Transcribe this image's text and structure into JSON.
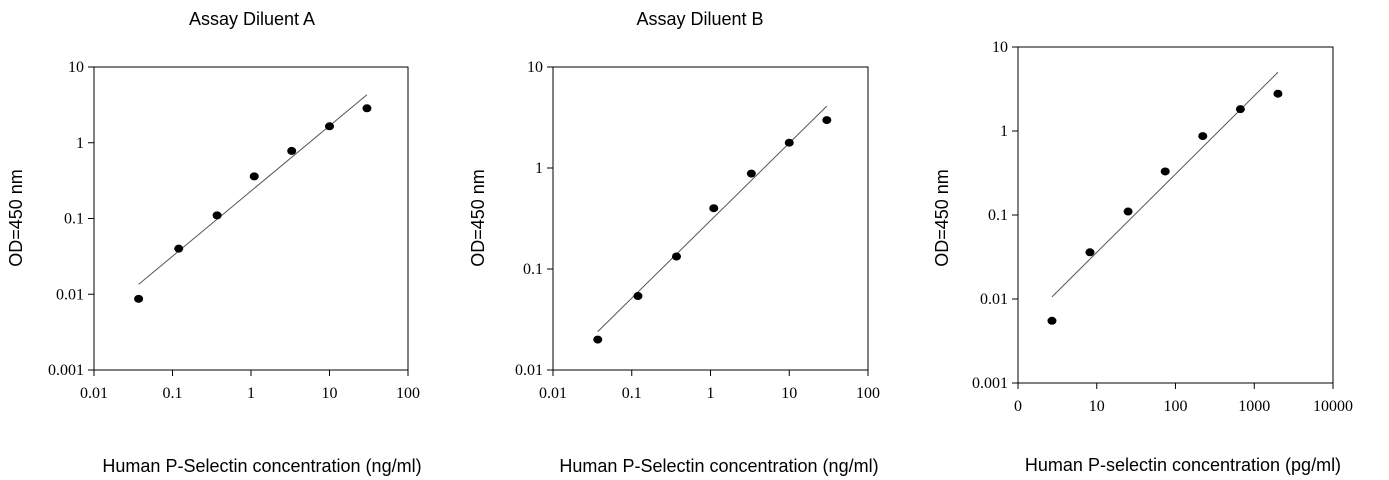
{
  "chart_data": [
    {
      "type": "scatter",
      "title": "Assay Diluent A",
      "xlabel": "Human P-Selectin concentration (ng/ml)",
      "ylabel": "OD=450 nm",
      "x_scale": "log",
      "y_scale": "log",
      "xlim": [
        0.01,
        100
      ],
      "ylim": [
        0.001,
        10
      ],
      "x_ticks": [
        "0.01",
        "0.1",
        "1",
        "10",
        "100"
      ],
      "y_ticks": [
        "0.001",
        "0.01",
        "0.1",
        "1",
        "10"
      ],
      "points": [
        {
          "x": 0.037,
          "y": 0.0087
        },
        {
          "x": 0.12,
          "y": 0.04
        },
        {
          "x": 0.37,
          "y": 0.11
        },
        {
          "x": 1.1,
          "y": 0.36
        },
        {
          "x": 3.3,
          "y": 0.78
        },
        {
          "x": 10,
          "y": 1.65
        },
        {
          "x": 30,
          "y": 2.85
        }
      ],
      "trendline": {
        "x": [
          0.037,
          30
        ],
        "y": [
          0.0135,
          4.3
        ]
      }
    },
    {
      "type": "scatter",
      "title": "Assay Diluent B",
      "xlabel": "Human P-Selectin concentration (ng/ml)",
      "ylabel": "OD=450 nm",
      "x_scale": "log",
      "y_scale": "log",
      "xlim": [
        0.01,
        100
      ],
      "ylim": [
        0.01,
        10
      ],
      "x_ticks": [
        "0.01",
        "0.1",
        "1",
        "10",
        "100"
      ],
      "y_ticks": [
        "0.01",
        "0.1",
        "1",
        "10"
      ],
      "points": [
        {
          "x": 0.037,
          "y": 0.02
        },
        {
          "x": 0.12,
          "y": 0.054
        },
        {
          "x": 0.37,
          "y": 0.133
        },
        {
          "x": 1.1,
          "y": 0.4
        },
        {
          "x": 3.3,
          "y": 0.88
        },
        {
          "x": 10,
          "y": 1.78
        },
        {
          "x": 30,
          "y": 2.98
        }
      ],
      "trendline": {
        "x": [
          0.037,
          30
        ],
        "y": [
          0.024,
          4.1
        ]
      }
    },
    {
      "type": "scatter",
      "title": "",
      "xlabel": "Human P-selectin concentration (pg/ml)",
      "ylabel": "OD=450 nm",
      "x_scale": "log",
      "y_scale": "log",
      "xlim": [
        1,
        10000
      ],
      "ylim": [
        0.001,
        10
      ],
      "x_ticks": [
        "0",
        "10",
        "100",
        "1000",
        "10000"
      ],
      "y_ticks": [
        "0.001",
        "0.01",
        "0.1",
        "1",
        "10"
      ],
      "points": [
        {
          "x": 2.7,
          "y": 0.0055
        },
        {
          "x": 8.2,
          "y": 0.036
        },
        {
          "x": 25,
          "y": 0.11
        },
        {
          "x": 74,
          "y": 0.33
        },
        {
          "x": 222,
          "y": 0.87
        },
        {
          "x": 667,
          "y": 1.82
        },
        {
          "x": 2000,
          "y": 2.78
        }
      ],
      "trendline": {
        "x": [
          2.7,
          2000
        ],
        "y": [
          0.0106,
          5.0
        ]
      }
    }
  ]
}
